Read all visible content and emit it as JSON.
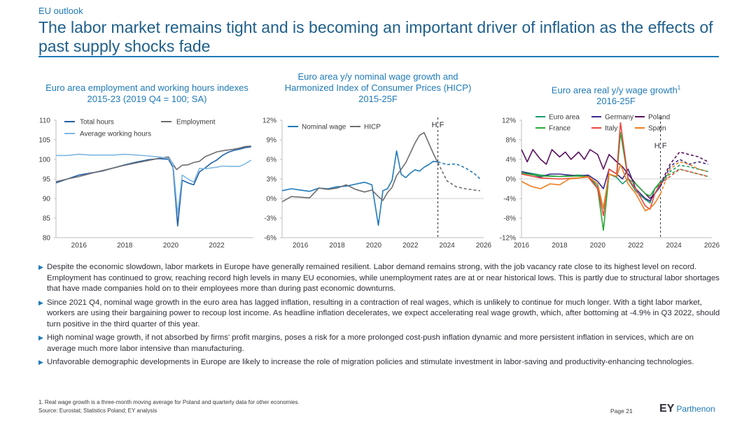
{
  "header": {
    "section": "EU outlook",
    "title": "The labor market remains tight and is becoming an important driver of inflation as the effects of past supply shocks fade"
  },
  "colors": {
    "accent": "#1f7ab8",
    "dark": "#1f5f8b"
  },
  "chart_data": [
    {
      "type": "line",
      "title": "Euro area employment and working hours indexes",
      "subtitle": "2015-23 (2019 Q4 = 100; SA)",
      "ylim": [
        80,
        110
      ],
      "yticks": [
        80,
        85,
        90,
        95,
        100,
        105,
        110
      ],
      "xlim": [
        2015,
        2023.6
      ],
      "xticks": [
        "2016",
        "2018",
        "2020",
        "2022"
      ],
      "series": [
        {
          "name": "Total hours",
          "color": "#1f5fa6",
          "x": [
            2015,
            2015.5,
            2016,
            2016.5,
            2017,
            2017.5,
            2018,
            2018.5,
            2019,
            2019.5,
            2019.9,
            2020.1,
            2020.3,
            2020.5,
            2020.75,
            2021,
            2021.25,
            2021.5,
            2021.75,
            2022,
            2022.25,
            2022.5,
            2022.75,
            2023,
            2023.25,
            2023.5
          ],
          "values": [
            94,
            95,
            96,
            96.5,
            97,
            97.8,
            98.6,
            99.3,
            99.9,
            100.2,
            100,
            98,
            83,
            94.7,
            94,
            93.5,
            96.8,
            97.8,
            99,
            99.8,
            101,
            101.8,
            102.3,
            102.6,
            103,
            103.2
          ]
        },
        {
          "name": "Employment",
          "color": "#6e6e72",
          "x": [
            2015,
            2015.5,
            2016,
            2016.5,
            2017,
            2017.5,
            2018,
            2018.5,
            2019,
            2019.5,
            2019.9,
            2020.25,
            2020.5,
            2020.75,
            2021,
            2021.25,
            2021.5,
            2021.75,
            2022,
            2022.25,
            2022.5,
            2022.75,
            2023,
            2023.25,
            2023.5
          ],
          "values": [
            94.3,
            95,
            95.6,
            96.4,
            97.1,
            97.8,
            98.5,
            99.1,
            99.7,
            100.3,
            100.6,
            97.4,
            98.5,
            98.6,
            99.2,
            99.5,
            100.7,
            101.3,
            101.9,
            102.2,
            102.4,
            102.6,
            102.9,
            103.3,
            103.4
          ]
        },
        {
          "name": "Average working hours",
          "color": "#7fb8e3",
          "x": [
            2015,
            2015.5,
            2016,
            2016.5,
            2017,
            2017.5,
            2018,
            2018.5,
            2019,
            2019.5,
            2019.9,
            2020.1,
            2020.3,
            2020.5,
            2020.75,
            2021,
            2021.25,
            2021.5,
            2021.75,
            2022,
            2022.25,
            2022.5,
            2022.75,
            2023,
            2023.25,
            2023.5
          ],
          "values": [
            101,
            101,
            101.3,
            101.1,
            101.1,
            101.1,
            101.3,
            101.1,
            100.9,
            100.6,
            100.2,
            99,
            86,
            96,
            95,
            94.2,
            97.7,
            97.6,
            97.8,
            98,
            98.3,
            98.2,
            98.2,
            98.2,
            98.9,
            99.8
          ]
        }
      ],
      "legend": [
        "Total hours",
        "Employment",
        "Average working hours"
      ]
    },
    {
      "type": "line",
      "title": "Euro area y/y nominal wage growth and",
      "title2": "Harmonized Index of Consumer Prices (HICP)",
      "subtitle": "2015-25F",
      "ylim": [
        -6,
        12
      ],
      "yticks": [
        "-6%",
        "-3%",
        "0%",
        "3%",
        "6%",
        "9%",
        "12%"
      ],
      "yvalues": [
        -6,
        -3,
        0,
        3,
        6,
        9,
        12
      ],
      "xlim": [
        2015,
        2026
      ],
      "xticks": [
        "2016",
        "2018",
        "2020",
        "2022",
        "2024",
        "2026"
      ],
      "forecast_marker": "H F",
      "forecast_x": 2023.5,
      "series": [
        {
          "name": "Nominal wage",
          "color": "#1f7ab8",
          "x": [
            2015,
            2015.5,
            2016,
            2016.5,
            2017,
            2017.5,
            2018,
            2018.5,
            2019,
            2019.5,
            2019.9,
            2020.25,
            2020.5,
            2020.75,
            2021,
            2021.25,
            2021.5,
            2021.75,
            2022,
            2022.25,
            2022.5,
            2022.75,
            2023,
            2023.25,
            2023.5
          ],
          "values": [
            1.2,
            1.5,
            1.3,
            1.1,
            1.6,
            1.5,
            1.8,
            1.9,
            2.2,
            2.5,
            2.1,
            -4.1,
            1.2,
            1.5,
            2.8,
            7.3,
            3.7,
            3.2,
            3.9,
            4.4,
            4.2,
            4.8,
            5.2,
            5.7,
            5.6
          ],
          "forecast_x": [
            2023.5,
            2024,
            2024.5,
            2025,
            2025.5,
            2025.8
          ],
          "forecast_values": [
            5.6,
            5.2,
            5.3,
            4.7,
            3.8,
            3.0
          ]
        },
        {
          "name": "HICP",
          "color": "#6e6e72",
          "x": [
            2015,
            2015.5,
            2016,
            2016.5,
            2017,
            2017.5,
            2018,
            2018.5,
            2019,
            2019.5,
            2019.9,
            2020.25,
            2020.5,
            2020.75,
            2021,
            2021.25,
            2021.5,
            2021.75,
            2022,
            2022.25,
            2022.5,
            2022.75,
            2023,
            2023.25,
            2023.5
          ],
          "values": [
            -0.5,
            0.3,
            0.2,
            0.1,
            1.6,
            1.4,
            1.6,
            2.1,
            1.4,
            1.0,
            1.3,
            0.3,
            -0.3,
            0.9,
            1.7,
            3.5,
            4.5,
            5.5,
            7.0,
            8.5,
            9.7,
            10.1,
            8.5,
            6.9,
            5.5
          ],
          "forecast_x": [
            2023.5,
            2024,
            2024.5,
            2025,
            2025.5,
            2025.8
          ],
          "forecast_values": [
            5.5,
            2.7,
            1.8,
            1.5,
            1.3,
            1.2
          ]
        }
      ],
      "legend": [
        "Nominal wage",
        "HICP"
      ]
    },
    {
      "type": "line",
      "title": "Euro area real y/y wage growth",
      "title_sup": "1",
      "subtitle": "2016-25F",
      "ylim": [
        -12,
        12
      ],
      "yticks": [
        "-12%",
        "-8%",
        "-4%",
        "0%",
        "4%",
        "8%",
        "12%"
      ],
      "yvalues": [
        -12,
        -8,
        -4,
        0,
        4,
        8,
        12
      ],
      "xlim": [
        2016,
        2026
      ],
      "xticks": [
        "2016",
        "2018",
        "2020",
        "2022",
        "2024",
        "2026"
      ],
      "forecast_marker": "H F",
      "forecast_x": 2023.3,
      "series": [
        {
          "name": "Euro area",
          "color": "#1a9b6e",
          "x": [
            2016,
            2017,
            2018,
            2019,
            2019.5,
            2020,
            2020.3,
            2020.6,
            2021,
            2021.3,
            2021.6,
            2022,
            2022.5,
            2022.75,
            2023,
            2023.3
          ],
          "values": [
            1.5,
            0.8,
            0.5,
            0.8,
            0.6,
            -1.5,
            -6,
            1,
            0.3,
            -1,
            0,
            -2.5,
            -4.2,
            -4.9,
            -2,
            -1
          ],
          "forecast_x": [
            2023.3,
            2023.8,
            2024.3,
            2024.8,
            2025.3,
            2025.8
          ],
          "forecast_values": [
            -1,
            1.5,
            2.8,
            2.5,
            2.0,
            1.5
          ]
        },
        {
          "name": "Germany",
          "color": "#3a2a8c",
          "x": [
            2016,
            2016.5,
            2017,
            2017.5,
            2018,
            2018.5,
            2019,
            2019.5,
            2020,
            2020.3,
            2020.6,
            2021,
            2021.3,
            2021.6,
            2022,
            2022.5,
            2022.75,
            2023,
            2023.3
          ],
          "values": [
            1.5,
            1.0,
            0.4,
            1.0,
            1.0,
            0.8,
            0.6,
            0.8,
            -0.5,
            -2,
            2,
            1,
            0,
            2,
            -2,
            -4,
            -4.5,
            -3,
            -1.5
          ],
          "forecast_x": [
            2023.3,
            2023.8,
            2024.3,
            2024.8,
            2025.3,
            2025.8
          ],
          "forecast_values": [
            -1.5,
            2.5,
            4.0,
            3.0,
            3.5,
            3.0
          ]
        },
        {
          "name": "Poland",
          "color": "#5a1060",
          "x": [
            2016,
            2016.3,
            2016.6,
            2017,
            2017.3,
            2017.6,
            2018,
            2018.3,
            2018.6,
            2019,
            2019.3,
            2019.6,
            2020,
            2020.3,
            2020.6,
            2021,
            2021.3,
            2021.6,
            2022,
            2022.5,
            2022.75,
            2023,
            2023.3
          ],
          "values": [
            6,
            3.5,
            6,
            4,
            3,
            6,
            4.5,
            5.5,
            4,
            5.5,
            4,
            6,
            5,
            2,
            5,
            3.5,
            2.5,
            1,
            -1,
            -3,
            -4,
            -3,
            -1
          ],
          "forecast_x": [
            2023.3,
            2023.8,
            2024.3,
            2024.8,
            2025.3,
            2025.8
          ],
          "forecast_values": [
            -1,
            3,
            5.5,
            5,
            4.5,
            3.5
          ]
        },
        {
          "name": "France",
          "color": "#2aa836",
          "x": [
            2016,
            2017,
            2018,
            2019,
            2019.5,
            2020,
            2020.3,
            2020.6,
            2021,
            2021.2,
            2021.6,
            2022,
            2022.5,
            2022.75,
            2023,
            2023.3
          ],
          "values": [
            1.2,
            0.6,
            0.5,
            0.6,
            0.5,
            -2,
            -10.5,
            1,
            0.5,
            9.5,
            0,
            -1,
            -3,
            -3.5,
            -2,
            -0.5
          ],
          "forecast_x": [
            2023.3,
            2023.8,
            2024.3,
            2024.8,
            2025.3,
            2025.8
          ],
          "forecast_values": [
            -0.5,
            1.0,
            2.0,
            1.5,
            1.0,
            0.5
          ]
        },
        {
          "name": "Italy",
          "color": "#e8453c",
          "x": [
            2016,
            2017,
            2018,
            2019,
            2019.5,
            2020,
            2020.3,
            2020.6,
            2021,
            2021.2,
            2021.6,
            2022,
            2022.5,
            2022.75,
            2023,
            2023.3
          ],
          "values": [
            1.0,
            0.2,
            0,
            0.2,
            0.4,
            -2,
            -7.5,
            2,
            1,
            11.5,
            0,
            -2,
            -5.5,
            -6.2,
            -3,
            -1
          ],
          "forecast_x": [
            2023.3,
            2023.8,
            2024.3,
            2024.8,
            2025.3,
            2025.8
          ],
          "forecast_values": [
            -1,
            0.5,
            2.0,
            1.5,
            1.0,
            0.5
          ]
        },
        {
          "name": "Spain",
          "color": "#f07d1e",
          "x": [
            2016,
            2016.5,
            2017,
            2017.5,
            2018,
            2018.5,
            2019,
            2019.5,
            2020,
            2020.3,
            2020.6,
            2021,
            2021.2,
            2021.6,
            2022,
            2022.5,
            2022.75,
            2023,
            2023.3
          ],
          "values": [
            -0.5,
            -1.5,
            -2,
            -1,
            -1.2,
            0,
            0.2,
            0.5,
            -1,
            -6,
            1,
            0.5,
            3,
            -1,
            -3,
            -6.5,
            -6,
            -5,
            -3
          ],
          "forecast_x": [
            2023.3,
            2023.8,
            2024.3,
            2024.8,
            2025.3,
            2025.8
          ],
          "forecast_values": [
            -3,
            2.0,
            3.5,
            3.0,
            2.0,
            1.5
          ]
        }
      ],
      "legend": [
        "Euro area",
        "Germany",
        "Poland",
        "France",
        "Italy",
        "Spain"
      ]
    }
  ],
  "bullets": [
    "Despite the economic slowdown, labor markets in Europe have generally remained resilient. Labor demand remains strong, with the job vacancy rate close to its highest level on record. Employment has continued to grow, reaching record high levels in many EU economies, while unemployment rates are at or near historical lows. This is partly due to structural labor shortages that have made companies hold on to their employees more than during past economic downturns.",
    "Since 2021 Q4, nominal wage growth in the euro area has lagged inflation, resulting in a contraction of real wages, which is unlikely to continue for much longer. With a tight labor market, workers are using their bargaining power to recoup lost income. As headline inflation decelerates, we expect accelerating real wage growth, which, after bottoming at -4.9% in Q3 2022, should turn positive in the third quarter of this year.",
    "High nominal wage growth, if not absorbed by firms' profit margins, poses a risk for a more prolonged cost-push inflation dynamic and more persistent inflation in services, which are on average much more labor intensive than manufacturing.",
    "Unfavorable demographic developments in Europe are likely to increase the role of migration policies and stimulate investment in labor-saving and productivity-enhancing technologies."
  ],
  "footer": {
    "footnote": "1.   Real wage growth is a three-month moving average for Poland and quarterly data for other economies.",
    "source": "Source: Eurostat; Statistics Poland; EY analysis",
    "page": "Page 21",
    "logo_main": "EY",
    "logo_sub": "Parthenon"
  }
}
